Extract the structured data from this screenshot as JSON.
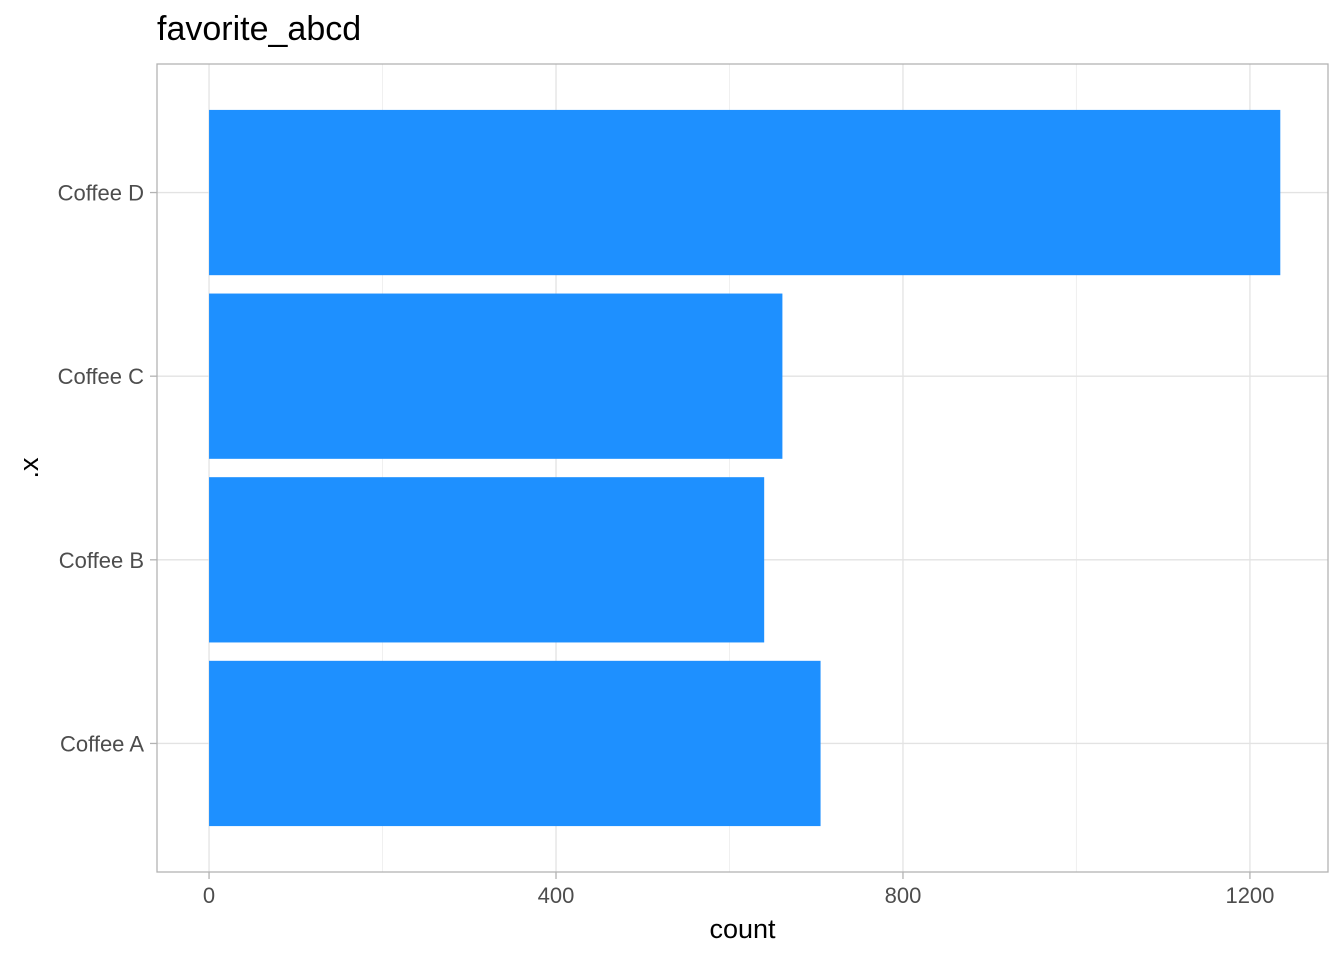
{
  "chart_data": {
    "type": "bar",
    "orientation": "horizontal",
    "title": "favorite_abcd",
    "xlabel": "count",
    "ylabel": ".x",
    "categories": [
      "Coffee A",
      "Coffee B",
      "Coffee C",
      "Coffee D"
    ],
    "values": [
      705,
      640,
      661,
      1235
    ],
    "xlim": [
      -60,
      1290
    ],
    "x_ticks": [
      0,
      400,
      800,
      1200
    ],
    "x_tick_labels": [
      "0",
      "400",
      "800",
      "1200"
    ],
    "bar_color": "#1E90FF",
    "grid": true,
    "legend": "none"
  }
}
